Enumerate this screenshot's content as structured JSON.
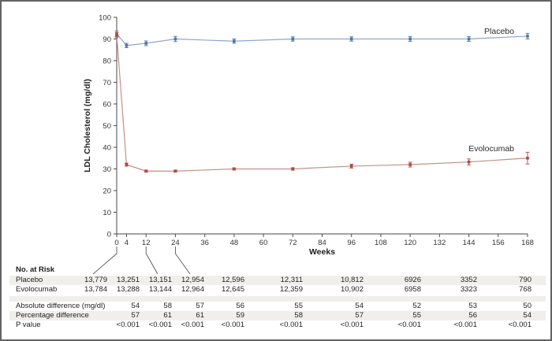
{
  "chart_data": {
    "type": "line",
    "title": "",
    "xlabel": "Weeks",
    "ylabel": "LDL Cholesterol (mg/dl)",
    "xlim": [
      0,
      168
    ],
    "ylim": [
      0,
      100
    ],
    "x_ticks": [
      0,
      4,
      12,
      24,
      36,
      48,
      60,
      72,
      84,
      96,
      108,
      120,
      132,
      144,
      156,
      168
    ],
    "y_ticks": [
      100,
      90,
      80,
      70,
      60,
      50,
      40,
      30,
      20,
      10,
      0
    ],
    "grid": false,
    "legend_position": "inline-end-of-line",
    "x": [
      0,
      4,
      12,
      24,
      48,
      72,
      96,
      120,
      144,
      168
    ],
    "series": [
      {
        "name": "Placebo",
        "line_color": "#8fa6c8",
        "marker_color": "#4f74a8",
        "values": [
          92.4,
          87,
          88,
          90,
          89,
          90,
          90,
          90,
          90,
          91.3
        ],
        "errors": [
          1.3,
          1.0,
          1.1,
          1.2,
          1.0,
          1.0,
          1.0,
          1.1,
          1.1,
          1.3
        ]
      },
      {
        "name": "Evolocumab",
        "line_color": "#c29185",
        "marker_color": "#b2463c",
        "values": [
          91.8,
          32,
          29,
          29,
          30,
          30,
          31.3,
          32,
          33.2,
          35
        ],
        "errors": [
          1.2,
          0.7,
          0.5,
          0.5,
          0.5,
          0.6,
          0.9,
          1.1,
          1.4,
          2.7
        ]
      }
    ]
  },
  "risk_table": {
    "header": "No. at Risk",
    "rows": [
      {
        "label": "Placebo",
        "values": [
          "13,779",
          "13,251",
          "13,151",
          "12,954",
          "12,596",
          "12,311",
          "10,812",
          "6926",
          "3352",
          "790"
        ]
      },
      {
        "label": "Evolocumab",
        "values": [
          "13,784",
          "13,288",
          "13,144",
          "12,964",
          "12,645",
          "12,359",
          "10,902",
          "6958",
          "3323",
          "768"
        ]
      }
    ]
  },
  "stats_table": {
    "rows": [
      {
        "label": "Absolute difference (mg/dl)",
        "values": [
          "54",
          "58",
          "57",
          "56",
          "55",
          "54",
          "52",
          "53",
          "50"
        ]
      },
      {
        "label": "Percentage difference",
        "values": [
          "57",
          "61",
          "61",
          "59",
          "58",
          "57",
          "55",
          "56",
          "54"
        ]
      },
      {
        "label": "P value",
        "values": [
          "<0.001",
          "<0.001",
          "<0.001",
          "<0.001",
          "<0.001",
          "<0.001",
          "<0.001",
          "<0.001",
          "<0.001"
        ]
      }
    ]
  },
  "colors": {
    "axis": "#4a4a4a",
    "leader_line": "#555555",
    "stripe": "#f0efec",
    "border": "#636363",
    "text": "#1f1f1f"
  }
}
